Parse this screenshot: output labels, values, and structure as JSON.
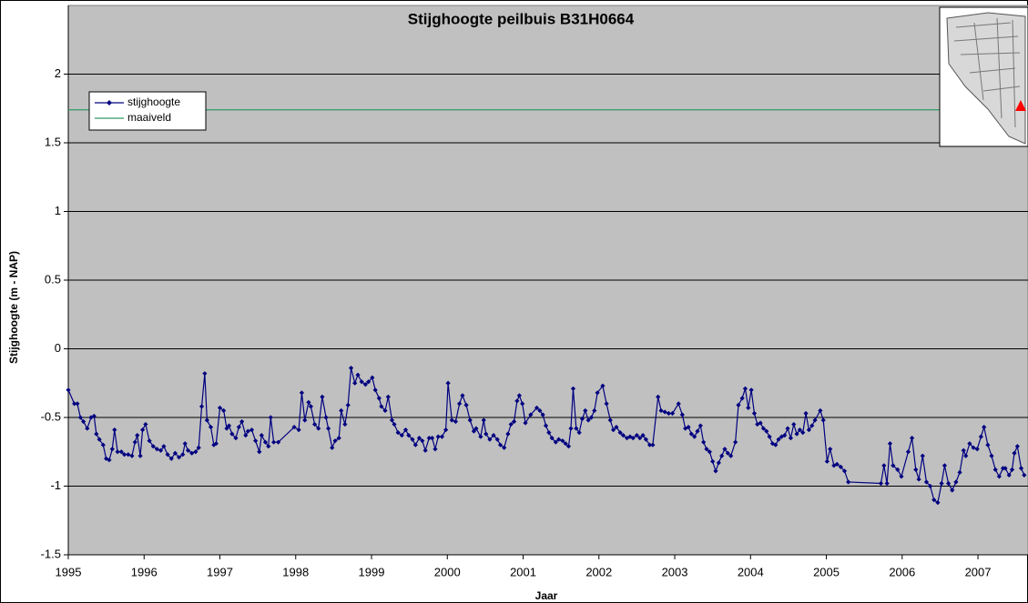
{
  "chart_data": {
    "type": "line",
    "title": "Stijghoogte peilbuis B31H0664",
    "xlabel": "Jaar",
    "ylabel": "Stijghoogte (m - NAP)",
    "xlim": [
      1995,
      2007.66
    ],
    "xticks": [
      1995,
      1996,
      1997,
      1998,
      1999,
      2000,
      2001,
      2002,
      2003,
      2004,
      2005,
      2006,
      2007
    ],
    "ylim": [
      -1.5,
      2.5
    ],
    "yticks": [
      -1.5,
      -1,
      -0.5,
      0,
      0.5,
      1,
      1.5,
      2
    ],
    "grid": true,
    "legend": "upper left",
    "series": [
      {
        "name": "stijghoogte",
        "color": "#000080",
        "marker": "diamond",
        "x": [
          1995.0,
          1995.08,
          1995.12,
          1995.16,
          1995.2,
          1995.25,
          1995.3,
          1995.34,
          1995.37,
          1995.41,
          1995.46,
          1995.5,
          1995.54,
          1995.58,
          1995.61,
          1995.65,
          1995.7,
          1995.74,
          1995.79,
          1995.84,
          1995.88,
          1995.91,
          1995.95,
          1995.98,
          1996.02,
          1996.07,
          1996.12,
          1996.17,
          1996.22,
          1996.26,
          1996.31,
          1996.36,
          1996.41,
          1996.46,
          1996.51,
          1996.54,
          1996.58,
          1996.63,
          1996.68,
          1996.72,
          1996.76,
          1996.8,
          1996.83,
          1996.88,
          1996.92,
          1996.95,
          1997.0,
          1997.05,
          1997.09,
          1997.12,
          1997.16,
          1997.21,
          1997.25,
          1997.29,
          1997.34,
          1997.37,
          1997.42,
          1997.47,
          1997.52,
          1997.55,
          1997.6,
          1997.64,
          1997.67,
          1997.71,
          1997.77,
          1997.98,
          1998.04,
          1998.08,
          1998.12,
          1998.17,
          1998.2,
          1998.25,
          1998.3,
          1998.35,
          1998.4,
          1998.43,
          1998.48,
          1998.52,
          1998.57,
          1998.6,
          1998.65,
          1998.69,
          1998.73,
          1998.78,
          1998.82,
          1998.87,
          1998.92,
          1998.96,
          1999.01,
          1999.05,
          1999.1,
          1999.13,
          1999.18,
          1999.22,
          1999.27,
          1999.3,
          1999.35,
          1999.4,
          1999.45,
          1999.49,
          1999.54,
          1999.58,
          1999.63,
          1999.67,
          1999.71,
          1999.76,
          1999.8,
          1999.84,
          1999.88,
          1999.93,
          1999.98,
          2000.01,
          2000.06,
          2000.11,
          2000.16,
          2000.2,
          2000.25,
          2000.3,
          2000.35,
          2000.38,
          2000.44,
          2000.48,
          2000.51,
          2000.56,
          2000.61,
          2000.66,
          2000.7,
          2000.75,
          2000.8,
          2000.84,
          2000.88,
          2000.92,
          2000.95,
          2000.99,
          2001.03,
          2001.1,
          2001.18,
          2001.22,
          2001.26,
          2001.3,
          2001.34,
          2001.38,
          2001.43,
          2001.47,
          2001.52,
          2001.56,
          2001.6,
          2001.63,
          2001.66,
          2001.7,
          2001.74,
          2001.78,
          2001.82,
          2001.86,
          2001.9,
          2001.94,
          2001.98,
          2002.05,
          2002.1,
          2002.15,
          2002.19,
          2002.23,
          2002.28,
          2002.32,
          2002.37,
          2002.41,
          2002.45,
          2002.5,
          2002.54,
          2002.58,
          2002.62,
          2002.67,
          2002.71,
          2002.78,
          2002.82,
          2002.87,
          2002.92,
          2002.97,
          2003.05,
          2003.1,
          2003.14,
          2003.18,
          2003.22,
          2003.26,
          2003.3,
          2003.34,
          2003.38,
          2003.42,
          2003.46,
          2003.5,
          2003.54,
          2003.58,
          2003.62,
          2003.66,
          2003.7,
          2003.74,
          2003.8,
          2003.84,
          2003.89,
          2003.93,
          2003.97,
          2004.01,
          2004.05,
          2004.09,
          2004.13,
          2004.17,
          2004.21,
          2004.25,
          2004.29,
          2004.33,
          2004.37,
          2004.41,
          2004.45,
          2004.49,
          2004.53,
          2004.57,
          2004.61,
          2004.65,
          2004.69,
          2004.73,
          2004.77,
          2004.81,
          2004.85,
          2004.92,
          2004.96,
          2005.01,
          2005.05,
          2005.1,
          2005.14,
          2005.19,
          2005.24,
          2005.29,
          2005.72,
          2005.76,
          2005.8,
          2005.84,
          2005.88,
          2005.94,
          2005.99,
          2006.08,
          2006.13,
          2006.18,
          2006.22,
          2006.27,
          2006.32,
          2006.37,
          2006.42,
          2006.47,
          2006.52,
          2006.56,
          2006.61,
          2006.66,
          2006.71,
          2006.76,
          2006.81,
          2006.84,
          2006.89,
          2006.94,
          2006.99,
          2007.04,
          2007.08,
          2007.13,
          2007.18,
          2007.23,
          2007.28,
          2007.33,
          2007.36,
          2007.41,
          2007.45,
          2007.48,
          2007.52,
          2007.57,
          2007.61
        ],
        "values": [
          -0.3,
          -0.4,
          -0.4,
          -0.5,
          -0.53,
          -0.58,
          -0.5,
          -0.49,
          -0.62,
          -0.66,
          -0.7,
          -0.8,
          -0.81,
          -0.73,
          -0.59,
          -0.75,
          -0.75,
          -0.77,
          -0.77,
          -0.78,
          -0.68,
          -0.63,
          -0.78,
          -0.59,
          -0.55,
          -0.67,
          -0.71,
          -0.73,
          -0.74,
          -0.71,
          -0.77,
          -0.8,
          -0.76,
          -0.79,
          -0.77,
          -0.69,
          -0.74,
          -0.76,
          -0.75,
          -0.72,
          -0.42,
          -0.18,
          -0.52,
          -0.57,
          -0.7,
          -0.69,
          -0.43,
          -0.45,
          -0.58,
          -0.56,
          -0.62,
          -0.65,
          -0.57,
          -0.53,
          -0.63,
          -0.6,
          -0.59,
          -0.67,
          -0.75,
          -0.63,
          -0.68,
          -0.71,
          -0.5,
          -0.68,
          -0.68,
          -0.57,
          -0.59,
          -0.32,
          -0.52,
          -0.39,
          -0.42,
          -0.55,
          -0.58,
          -0.35,
          -0.5,
          -0.58,
          -0.72,
          -0.67,
          -0.65,
          -0.45,
          -0.55,
          -0.41,
          -0.14,
          -0.25,
          -0.19,
          -0.24,
          -0.26,
          -0.24,
          -0.21,
          -0.3,
          -0.36,
          -0.42,
          -0.45,
          -0.35,
          -0.52,
          -0.55,
          -0.61,
          -0.63,
          -0.59,
          -0.63,
          -0.66,
          -0.7,
          -0.65,
          -0.67,
          -0.74,
          -0.65,
          -0.65,
          -0.73,
          -0.64,
          -0.64,
          -0.59,
          -0.25,
          -0.52,
          -0.53,
          -0.4,
          -0.34,
          -0.41,
          -0.52,
          -0.6,
          -0.58,
          -0.64,
          -0.52,
          -0.62,
          -0.66,
          -0.63,
          -0.66,
          -0.7,
          -0.72,
          -0.62,
          -0.55,
          -0.53,
          -0.38,
          -0.34,
          -0.4,
          -0.54,
          -0.48,
          -0.43,
          -0.45,
          -0.48,
          -0.56,
          -0.61,
          -0.65,
          -0.68,
          -0.66,
          -0.67,
          -0.69,
          -0.71,
          -0.58,
          -0.29,
          -0.58,
          -0.61,
          -0.51,
          -0.45,
          -0.52,
          -0.5,
          -0.45,
          -0.32,
          -0.27,
          -0.4,
          -0.52,
          -0.59,
          -0.57,
          -0.61,
          -0.63,
          -0.65,
          -0.64,
          -0.65,
          -0.63,
          -0.65,
          -0.63,
          -0.66,
          -0.7,
          -0.7,
          -0.35,
          -0.45,
          -0.46,
          -0.47,
          -0.47,
          -0.4,
          -0.48,
          -0.58,
          -0.57,
          -0.62,
          -0.64,
          -0.6,
          -0.56,
          -0.68,
          -0.73,
          -0.75,
          -0.82,
          -0.89,
          -0.83,
          -0.78,
          -0.73,
          -0.76,
          -0.78,
          -0.68,
          -0.41,
          -0.36,
          -0.29,
          -0.43,
          -0.3,
          -0.47,
          -0.55,
          -0.54,
          -0.58,
          -0.6,
          -0.64,
          -0.69,
          -0.7,
          -0.66,
          -0.64,
          -0.63,
          -0.58,
          -0.65,
          -0.55,
          -0.62,
          -0.59,
          -0.61,
          -0.47,
          -0.59,
          -0.56,
          -0.52,
          -0.45,
          -0.52,
          -0.82,
          -0.73,
          -0.85,
          -0.84,
          -0.86,
          -0.89,
          -0.97,
          -0.98,
          -0.85,
          -0.98,
          -0.69,
          -0.85,
          -0.88,
          -0.93,
          -0.75,
          -0.65,
          -0.88,
          -0.95,
          -0.78,
          -0.97,
          -1.0,
          -1.1,
          -1.12,
          -0.98,
          -0.85,
          -0.98,
          -1.03,
          -0.97,
          -0.9,
          -0.74,
          -0.78,
          -0.69,
          -0.72,
          -0.73,
          -0.64,
          -0.57,
          -0.7,
          -0.78,
          -0.88,
          -0.93,
          -0.87,
          -0.87,
          -0.92,
          -0.88,
          -0.76,
          -0.71,
          -0.87,
          -0.92
        ]
      },
      {
        "name": "maaiveld",
        "color": "#339966",
        "x": [
          1995,
          2007.66
        ],
        "values": [
          1.74,
          1.74
        ]
      }
    ]
  }
}
